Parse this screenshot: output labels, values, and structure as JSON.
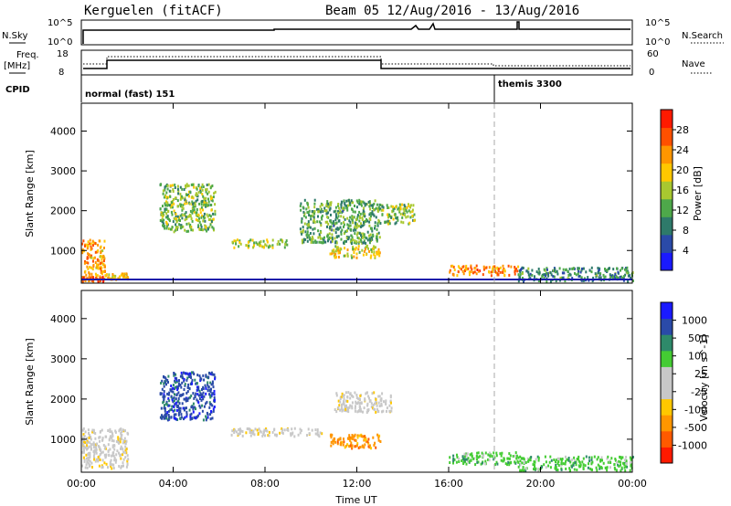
{
  "header": {
    "station": "Kerguelen (fitACF)",
    "beam": "Beam 05  12/Aug/2016 - 13/Aug/2016"
  },
  "strips": {
    "nsky_label": "N.Sky",
    "nsky_top": "10^5",
    "nsky_bottom": "10^0",
    "nsearch_label": "N.Search",
    "nsearch_top": "10^5",
    "nsearch_bottom": "10^0",
    "freq_label_1": "Freq.",
    "freq_label_2": "[MHz]",
    "freq_top": "18",
    "freq_bottom": "8",
    "nave_label": "Nave",
    "nave_top": "60",
    "nave_bottom": "0",
    "cpid_label": "CPID",
    "cpid_mode_1": "normal (fast) 151",
    "cpid_mode_2": "themis 3300"
  },
  "colors": {
    "power": [
      "#1a1aff",
      "#2a4aa8",
      "#2e7a6a",
      "#4ea84a",
      "#a8c830",
      "#ffc800",
      "#ff9600",
      "#ff5000",
      "#ff1a00"
    ],
    "velocity": [
      "#ff1a00",
      "#ff5a00",
      "#ff9600",
      "#ffc800",
      "#c8c8c8",
      "#c8c8c8",
      "#44cc33",
      "#2e8a6a",
      "#2a4aa8",
      "#1a1aff"
    ]
  },
  "chart_data": [
    {
      "type": "heatmap",
      "name": "power",
      "xlabel": "",
      "ylabel": "Slant Range [km]",
      "y_ticks": [
        "1000",
        "2000",
        "3000",
        "4000"
      ],
      "y_range_km": [
        180,
        4700
      ],
      "x_range_hours": [
        0,
        24
      ],
      "colorbar_label": "Power [dB]",
      "colorbar_ticks": [
        "4",
        "8",
        "12",
        "16",
        "20",
        "24",
        "28"
      ],
      "colorbar_range": [
        0,
        32
      ],
      "scatter_regions": [
        {
          "t": [
            0.0,
            1.0
          ],
          "r": [
            300,
            1300
          ],
          "level": 22
        },
        {
          "t": [
            0.0,
            1.0
          ],
          "r": [
            250,
            380
          ],
          "level": 26
        },
        {
          "t": [
            1.0,
            2.0
          ],
          "r": [
            300,
            450
          ],
          "level": 20
        },
        {
          "t": [
            3.4,
            5.8
          ],
          "r": [
            1500,
            2700
          ],
          "level": 14
        },
        {
          "t": [
            6.5,
            9.0
          ],
          "r": [
            1100,
            1300
          ],
          "level": 16
        },
        {
          "t": [
            9.5,
            13.0
          ],
          "r": [
            1200,
            2300
          ],
          "level": 12
        },
        {
          "t": [
            10.8,
            13.0
          ],
          "r": [
            850,
            1150
          ],
          "level": 18
        },
        {
          "t": [
            13.0,
            14.5
          ],
          "r": [
            1700,
            2200
          ],
          "level": 14
        },
        {
          "t": [
            16.0,
            19.0
          ],
          "r": [
            400,
            650
          ],
          "level": 24
        },
        {
          "t": [
            19.0,
            24.0
          ],
          "r": [
            250,
            600
          ],
          "level": 10
        }
      ]
    },
    {
      "type": "heatmap",
      "name": "velocity",
      "xlabel": "Time UT",
      "ylabel": "Slant Range [km]",
      "x_ticks": [
        "00:00",
        "04:00",
        "08:00",
        "12:00",
        "16:00",
        "20:00",
        "00:00"
      ],
      "y_ticks": [
        "1000",
        "2000",
        "3000",
        "4000"
      ],
      "y_range_km": [
        180,
        4700
      ],
      "x_range_hours": [
        0,
        24
      ],
      "colorbar_label": "Velocity [m s^-1]",
      "colorbar_ticks": [
        "-1000",
        "-500",
        "-100",
        "-25",
        "25",
        "100",
        "500",
        "1000"
      ],
      "scatter_regions": [
        {
          "t": [
            0.0,
            2.0
          ],
          "r": [
            300,
            1300
          ],
          "cls": 4
        },
        {
          "t": [
            3.4,
            5.8
          ],
          "r": [
            1500,
            2700
          ],
          "cls": 8
        },
        {
          "t": [
            6.5,
            10.5
          ],
          "r": [
            1100,
            1300
          ],
          "cls": 4
        },
        {
          "t": [
            10.8,
            13.0
          ],
          "r": [
            800,
            1150
          ],
          "cls": 2
        },
        {
          "t": [
            11.0,
            13.5
          ],
          "r": [
            1700,
            2200
          ],
          "cls": 4
        },
        {
          "t": [
            16.0,
            19.0
          ],
          "r": [
            400,
            700
          ],
          "cls": 6
        },
        {
          "t": [
            19.0,
            24.0
          ],
          "r": [
            250,
            600
          ],
          "cls": 6
        }
      ]
    }
  ]
}
